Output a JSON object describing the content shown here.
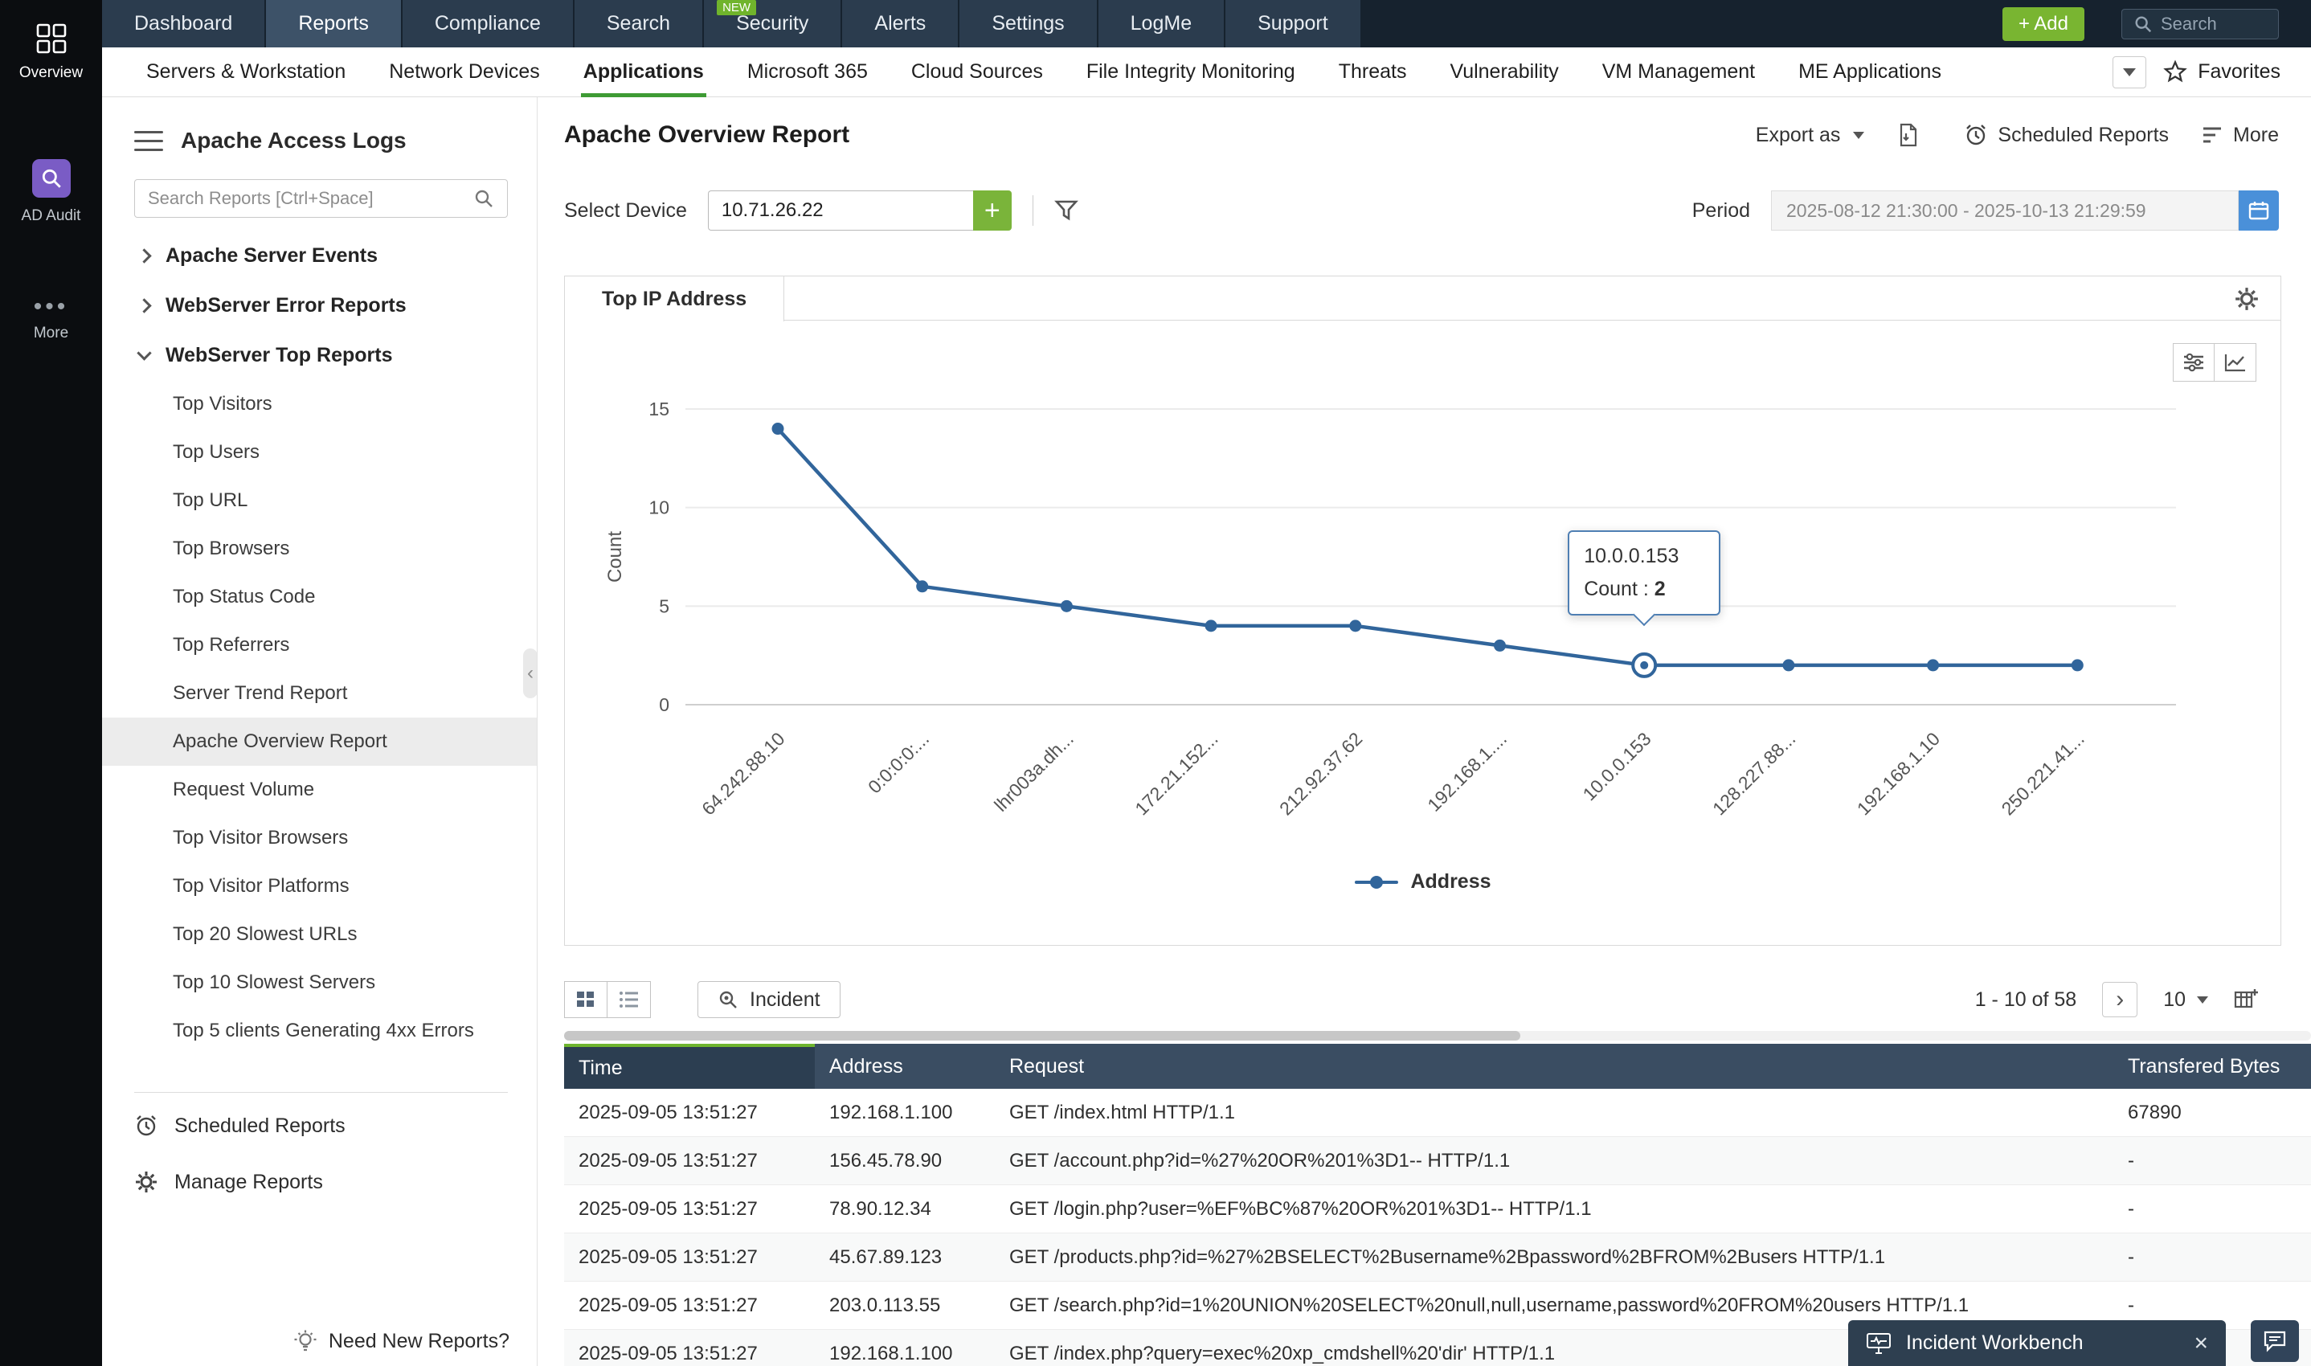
{
  "topnav": {
    "items": [
      {
        "label": "Dashboard"
      },
      {
        "label": "Reports",
        "active": true
      },
      {
        "label": "Compliance"
      },
      {
        "label": "Search"
      },
      {
        "label": "Security",
        "badge": "NEW"
      },
      {
        "label": "Alerts"
      },
      {
        "label": "Settings"
      },
      {
        "label": "LogMe"
      },
      {
        "label": "Support"
      }
    ],
    "add_label": "+ Add",
    "search_placeholder": "Search"
  },
  "rail": {
    "items": [
      {
        "label": "Overview"
      },
      {
        "label": "AD Audit"
      },
      {
        "label": "More"
      }
    ]
  },
  "subnav": {
    "items": [
      {
        "label": "Servers & Workstation"
      },
      {
        "label": "Network Devices"
      },
      {
        "label": "Applications",
        "active": true
      },
      {
        "label": "Microsoft 365"
      },
      {
        "label": "Cloud Sources"
      },
      {
        "label": "File Integrity Monitoring"
      },
      {
        "label": "Threats"
      },
      {
        "label": "Vulnerability"
      },
      {
        "label": "VM Management"
      },
      {
        "label": "ME Applications"
      }
    ],
    "favorites_label": "Favorites"
  },
  "sidebar": {
    "title": "Apache Access Logs",
    "search_placeholder": "Search Reports [Ctrl+Space]",
    "groups": [
      {
        "label": "Apache Server Events",
        "expanded": false
      },
      {
        "label": "WebServer Error Reports",
        "expanded": false
      },
      {
        "label": "WebServer Top Reports",
        "expanded": true,
        "children": [
          "Top Visitors",
          "Top Users",
          "Top URL",
          "Top Browsers",
          "Top Status Code",
          "Top Referrers",
          "Server Trend Report",
          "Apache Overview Report",
          "Request Volume",
          "Top Visitor Browsers",
          "Top Visitor Platforms",
          "Top 20 Slowest URLs",
          "Top 10 Slowest Servers",
          "Top 5 clients Generating 4xx Errors"
        ]
      }
    ],
    "selected_child": "Apache Overview Report",
    "footer_items": [
      "Scheduled Reports",
      "Manage Reports"
    ],
    "need_new_reports": "Need New Reports?"
  },
  "report": {
    "title": "Apache Overview Report",
    "export_label": "Export as",
    "scheduled_reports_label": "Scheduled Reports",
    "more_label": "More",
    "select_device_label": "Select Device",
    "device_value": "10.71.26.22",
    "period_label": "Period",
    "period_value": "2025-08-12 21:30:00 - 2025-10-13 21:29:59",
    "tab": "Top IP Address"
  },
  "chart_data": {
    "type": "line",
    "title": "Top IP Address",
    "categories": [
      "64.242.88.10",
      "0:0:0:0:...",
      "lhr003a.dh...",
      "172.21.152...",
      "212.92.37.62",
      "192.168.1....",
      "10.0.0.153",
      "128.227.88...",
      "192.168.1.10",
      "250.221.41..."
    ],
    "values": [
      14,
      6,
      5,
      4,
      4,
      3,
      2,
      2,
      2,
      2
    ],
    "xlabel": "",
    "ylabel": "Count",
    "yticks": [
      0,
      5,
      10,
      15
    ],
    "ylim": [
      0,
      15
    ],
    "grid": true,
    "legend": [
      "Address"
    ],
    "legend_position": "bottom",
    "line_color": "#31659b",
    "tooltip": {
      "label": "10.0.0.153",
      "count_label": "Count :",
      "count_value": "2",
      "index": 6
    }
  },
  "table": {
    "toolbar": {
      "incident_label": "Incident",
      "pagination": "1 - 10 of 58",
      "page_size": "10"
    },
    "columns": [
      "Time",
      "Address",
      "Request",
      "Transfered Bytes"
    ],
    "rows": [
      [
        "2025-09-05 13:51:27",
        "192.168.1.100",
        "GET /index.html HTTP/1.1",
        "67890"
      ],
      [
        "2025-09-05 13:51:27",
        "156.45.78.90",
        "GET /account.php?id=%27%20OR%201%3D1-- HTTP/1.1",
        "-"
      ],
      [
        "2025-09-05 13:51:27",
        "78.90.12.34",
        "GET /login.php?user=%EF%BC%87%20OR%201%3D1-- HTTP/1.1",
        "-"
      ],
      [
        "2025-09-05 13:51:27",
        "45.67.89.123",
        "GET /products.php?id=%27%2BSELECT%2Busername%2Bpassword%2BFROM%2Busers HTTP/1.1",
        "-"
      ],
      [
        "2025-09-05 13:51:27",
        "203.0.113.55",
        "GET /search.php?id=1%20UNION%20SELECT%20null,null,username,password%20FROM%20users HTTP/1.1",
        "-"
      ],
      [
        "2025-09-05 13:51:27",
        "192.168.1.100",
        "GET /index.php?query=exec%20xp_cmdshell%20'dir' HTTP/1.1",
        "-"
      ]
    ]
  },
  "workbench": {
    "label": "Incident Workbench"
  }
}
